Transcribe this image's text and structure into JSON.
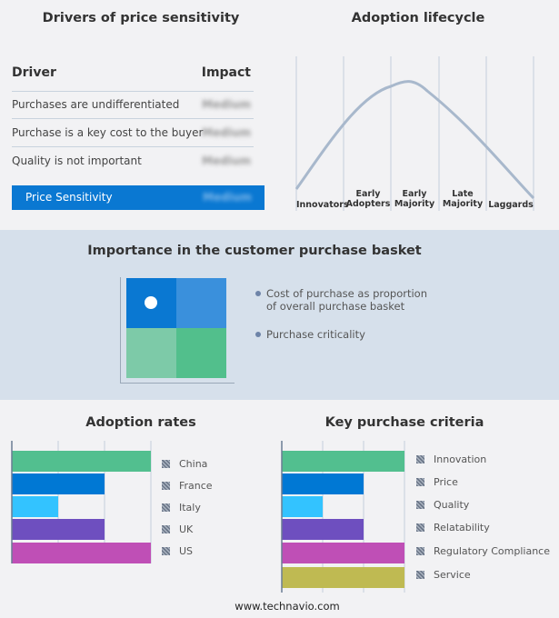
{
  "drivers": {
    "title": "Drivers of price sensitivity",
    "col_driver": "Driver",
    "col_impact": "Impact",
    "rows": [
      {
        "driver": "Purchases are undifferentiated",
        "impact": "Medium"
      },
      {
        "driver": "Purchase is a key cost to the buyer",
        "impact": "Medium"
      },
      {
        "driver": "Quality is not important",
        "impact": "Medium"
      }
    ],
    "summary": {
      "label": "Price Sensitivity",
      "impact": "Medium"
    }
  },
  "lifecycle": {
    "title": "Adoption lifecycle",
    "stages": [
      "Innovators",
      "Early Adopters",
      "Early Majority",
      "Late Majority",
      "Laggards"
    ]
  },
  "basket": {
    "title": "Importance in the customer purchase basket",
    "legend": [
      "Cost of purchase as proportion of overall purchase basket",
      "Purchase criticality"
    ]
  },
  "footer": "www.technavio.com",
  "chart_data": [
    {
      "type": "bar",
      "title": "Adoption rates",
      "categories": [
        "China",
        "France",
        "Italy",
        "UK",
        "US"
      ],
      "values": [
        3,
        2,
        1,
        2,
        3
      ],
      "xlim": [
        0,
        3
      ],
      "colors": [
        "#52bf8f",
        "#0078d4",
        "#33c3ff",
        "#6e4fbf",
        "#bf4fb6"
      ],
      "grid": true,
      "legend": "right"
    },
    {
      "type": "bar",
      "title": "Key purchase criteria",
      "categories": [
        "Innovation",
        "Price",
        "Quality",
        "Relatability",
        "Regulatory Compliance",
        "Service"
      ],
      "values": [
        3,
        2,
        1,
        2,
        3,
        3
      ],
      "xlim": [
        0,
        3
      ],
      "colors": [
        "#52bf8f",
        "#0078d4",
        "#33c3ff",
        "#6e4fbf",
        "#bf4fb6",
        "#bfba52"
      ],
      "grid": true,
      "legend": "right"
    }
  ]
}
